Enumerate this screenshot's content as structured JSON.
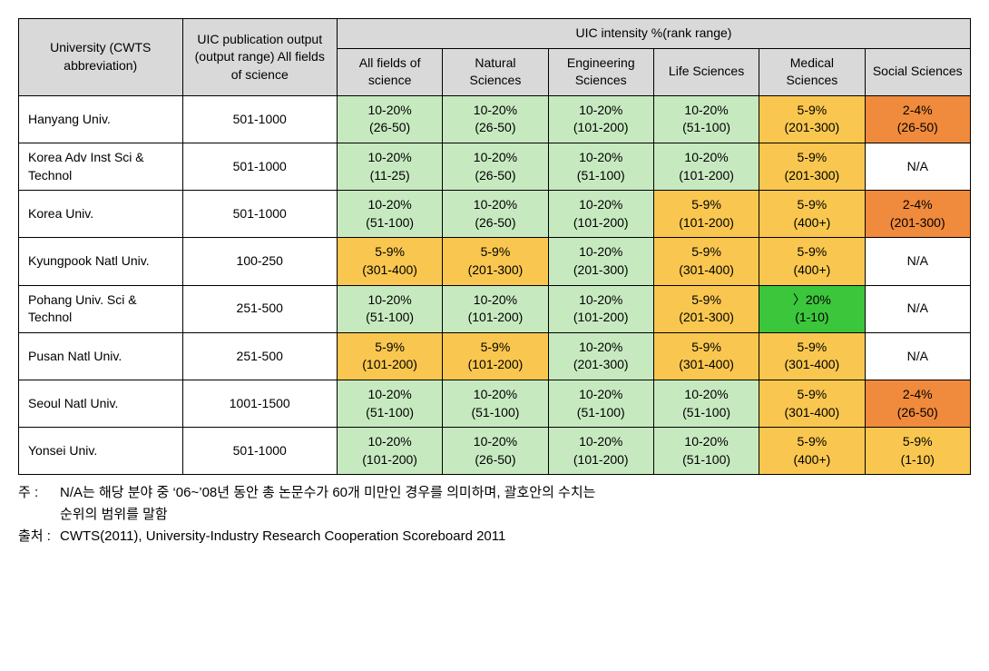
{
  "colors": {
    "header_bg": "#d9d9d9",
    "green_light": "#c7e9c0",
    "green_bright": "#3cc63c",
    "orange_light": "#f9c74f",
    "orange_dark": "#f08a3c",
    "white": "#ffffff",
    "border": "#000000"
  },
  "colwidths": {
    "uni": 180,
    "output": 170,
    "field": 116
  },
  "headers": {
    "university": "University (CWTS abbreviation)",
    "output": "UIC publication output (output range) All fields of science",
    "intensity_group": "UIC intensity %(rank range)",
    "fields": [
      "All fields of science",
      "Natural Sciences",
      "Engineering Sciences",
      "Life Sciences",
      "Medical Sciences",
      "Social Sciences"
    ]
  },
  "rows": [
    {
      "uni": "Hanyang Univ.",
      "output": "501-1000",
      "cells": [
        {
          "t": "10-20%\n(26-50)",
          "c": "green_light"
        },
        {
          "t": "10-20%\n(26-50)",
          "c": "green_light"
        },
        {
          "t": "10-20%\n(101-200)",
          "c": "green_light"
        },
        {
          "t": "10-20%\n(51-100)",
          "c": "green_light"
        },
        {
          "t": "5-9%\n(201-300)",
          "c": "orange_light"
        },
        {
          "t": "2-4%\n(26-50)",
          "c": "orange_dark"
        }
      ]
    },
    {
      "uni": "Korea Adv Inst Sci & Technol",
      "output": "501-1000",
      "cells": [
        {
          "t": "10-20%\n(11-25)",
          "c": "green_light"
        },
        {
          "t": "10-20%\n(26-50)",
          "c": "green_light"
        },
        {
          "t": "10-20%\n(51-100)",
          "c": "green_light"
        },
        {
          "t": "10-20%\n(101-200)",
          "c": "green_light"
        },
        {
          "t": "5-9%\n(201-300)",
          "c": "orange_light"
        },
        {
          "t": "N/A",
          "c": "white"
        }
      ]
    },
    {
      "uni": "Korea Univ.",
      "output": "501-1000",
      "cells": [
        {
          "t": "10-20%\n(51-100)",
          "c": "green_light"
        },
        {
          "t": "10-20%\n(26-50)",
          "c": "green_light"
        },
        {
          "t": "10-20%\n(101-200)",
          "c": "green_light"
        },
        {
          "t": "5-9%\n(101-200)",
          "c": "orange_light"
        },
        {
          "t": "5-9%\n(400+)",
          "c": "orange_light"
        },
        {
          "t": "2-4%\n(201-300)",
          "c": "orange_dark"
        }
      ]
    },
    {
      "uni": "Kyungpook Natl Univ.",
      "output": "100-250",
      "cells": [
        {
          "t": "5-9%\n(301-400)",
          "c": "orange_light"
        },
        {
          "t": "5-9%\n(201-300)",
          "c": "orange_light"
        },
        {
          "t": "10-20%\n(201-300)",
          "c": "green_light"
        },
        {
          "t": "5-9%\n(301-400)",
          "c": "orange_light"
        },
        {
          "t": "5-9%\n(400+)",
          "c": "orange_light"
        },
        {
          "t": "N/A",
          "c": "white"
        }
      ]
    },
    {
      "uni": "Pohang Univ. Sci & Technol",
      "output": "251-500",
      "cells": [
        {
          "t": "10-20%\n(51-100)",
          "c": "green_light"
        },
        {
          "t": "10-20%\n(101-200)",
          "c": "green_light"
        },
        {
          "t": "10-20%\n(101-200)",
          "c": "green_light"
        },
        {
          "t": "5-9%\n(201-300)",
          "c": "orange_light"
        },
        {
          "t": "〉20%\n(1-10)",
          "c": "green_bright"
        },
        {
          "t": "N/A",
          "c": "white"
        }
      ]
    },
    {
      "uni": "Pusan Natl Univ.",
      "output": "251-500",
      "cells": [
        {
          "t": "5-9%\n(101-200)",
          "c": "orange_light"
        },
        {
          "t": "5-9%\n(101-200)",
          "c": "orange_light"
        },
        {
          "t": "10-20%\n(201-300)",
          "c": "green_light"
        },
        {
          "t": "5-9%\n(301-400)",
          "c": "orange_light"
        },
        {
          "t": "5-9%\n(301-400)",
          "c": "orange_light"
        },
        {
          "t": "N/A",
          "c": "white"
        }
      ]
    },
    {
      "uni": "Seoul Natl Univ.",
      "output": "1001-1500",
      "cells": [
        {
          "t": "10-20%\n(51-100)",
          "c": "green_light"
        },
        {
          "t": "10-20%\n(51-100)",
          "c": "green_light"
        },
        {
          "t": "10-20%\n(51-100)",
          "c": "green_light"
        },
        {
          "t": "10-20%\n(51-100)",
          "c": "green_light"
        },
        {
          "t": "5-9%\n(301-400)",
          "c": "orange_light"
        },
        {
          "t": "2-4%\n(26-50)",
          "c": "orange_dark"
        }
      ]
    },
    {
      "uni": "Yonsei Univ.",
      "output": "501-1000",
      "cells": [
        {
          "t": "10-20%\n(101-200)",
          "c": "green_light"
        },
        {
          "t": "10-20%\n(26-50)",
          "c": "green_light"
        },
        {
          "t": "10-20%\n(101-200)",
          "c": "green_light"
        },
        {
          "t": "10-20%\n(51-100)",
          "c": "green_light"
        },
        {
          "t": "5-9%\n(400+)",
          "c": "orange_light"
        },
        {
          "t": "5-9%\n(1-10)",
          "c": "orange_light"
        }
      ]
    }
  ],
  "notes": {
    "note_label": "주 :",
    "note_line1": "N/A는 해당 분야 중 ‘06~’08년 동안 총 논문수가 60개 미만인 경우를 의미하며, 괄호안의 수치는",
    "note_line2": "순위의 범위를 말함",
    "source_label": "출처 :",
    "source_text": "CWTS(2011), University-Industry Research Cooperation Scoreboard 2011"
  }
}
